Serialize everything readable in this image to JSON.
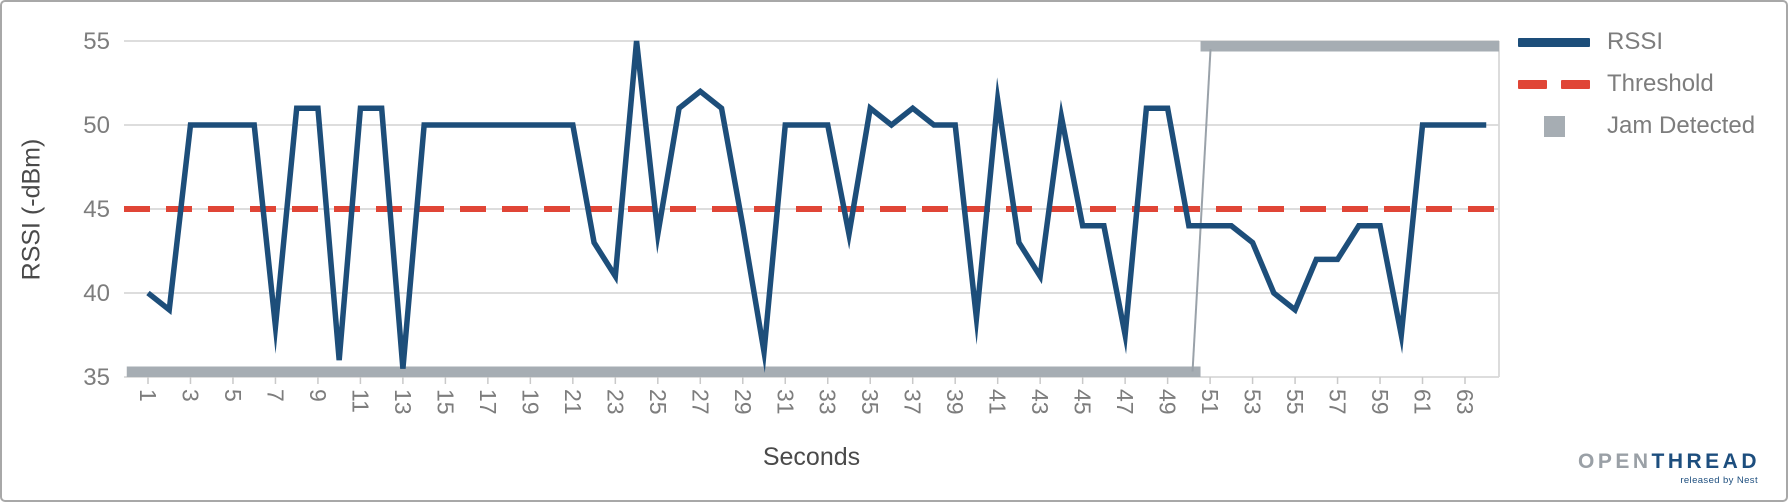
{
  "chart_data": {
    "type": "line",
    "title": "",
    "xlabel": "Seconds",
    "ylabel": "RSSI (-dBm)",
    "ylim": [
      35,
      55
    ],
    "xlim": [
      0,
      65
    ],
    "grid": "horizontal",
    "legend_position": "top-right",
    "y_ticks": [
      55,
      50,
      45,
      40,
      35
    ],
    "x_ticks": [
      1,
      3,
      5,
      7,
      9,
      11,
      13,
      15,
      17,
      19,
      21,
      23,
      25,
      27,
      29,
      31,
      33,
      35,
      37,
      39,
      41,
      43,
      45,
      47,
      49,
      51,
      53,
      55,
      57,
      59,
      61,
      63
    ],
    "x": [
      1,
      2,
      3,
      4,
      5,
      6,
      7,
      8,
      9,
      10,
      11,
      12,
      13,
      14,
      15,
      16,
      17,
      18,
      19,
      20,
      21,
      22,
      23,
      24,
      25,
      26,
      27,
      28,
      29,
      30,
      31,
      32,
      33,
      34,
      35,
      36,
      37,
      38,
      39,
      40,
      41,
      42,
      43,
      44,
      45,
      46,
      47,
      48,
      49,
      50,
      51,
      52,
      53,
      54,
      55,
      56,
      57,
      58,
      59,
      60,
      61,
      62,
      63,
      64
    ],
    "series": [
      {
        "name": "RSSI",
        "type": "line",
        "color": "#1d4e7a",
        "stroke_width": 5.5,
        "values": [
          40,
          39,
          50,
          50,
          50,
          50,
          38,
          51,
          51,
          36,
          51,
          51,
          35.5,
          50,
          50,
          50,
          50,
          50,
          50,
          50,
          50,
          43,
          41,
          55,
          43.5,
          51,
          52,
          51,
          44,
          36.5,
          50,
          50,
          50,
          43.5,
          51,
          50,
          51,
          50,
          50,
          38.5,
          51.5,
          43,
          41,
          50.5,
          44,
          44,
          37.5,
          51,
          51,
          44,
          44,
          44,
          43,
          40,
          39,
          42,
          42,
          44,
          44,
          37.5,
          50,
          50,
          50,
          50
        ]
      },
      {
        "name": "Threshold",
        "type": "hline",
        "color": "#e04536",
        "style": "dashed",
        "stroke_width": 6,
        "value": 45
      },
      {
        "name": "Jam Detected",
        "type": "interval",
        "color": "#a6adb3",
        "connector_color": "#9aa2a9",
        "bar_thickness": 10.5,
        "segments": [
          {
            "x_start": 0,
            "x_end": 50.55,
            "value": 35
          },
          {
            "x_start": 50.55,
            "x_end": 65,
            "value": 55
          }
        ]
      }
    ]
  },
  "legend": {
    "items": [
      {
        "label": "RSSI",
        "swatch": "line",
        "color": "#1d4e7a"
      },
      {
        "label": "Threshold",
        "swatch": "dashed-line",
        "color": "#e04536"
      },
      {
        "label": "Jam Detected",
        "swatch": "square",
        "color": "#a6adb3"
      }
    ]
  },
  "axes": {
    "x_title": "Seconds",
    "y_title": "RSSI (-dBm)"
  },
  "branding": {
    "logo_part1": "OPEN",
    "logo_part2": "THREAD",
    "tagline": "released by Nest"
  },
  "colors": {
    "gridline": "#d8d8d8",
    "tick_label": "#7d7d7d",
    "axis_title": "#4a4a4a",
    "frame_border": "#a8a8a8",
    "background": "#ffffff"
  }
}
